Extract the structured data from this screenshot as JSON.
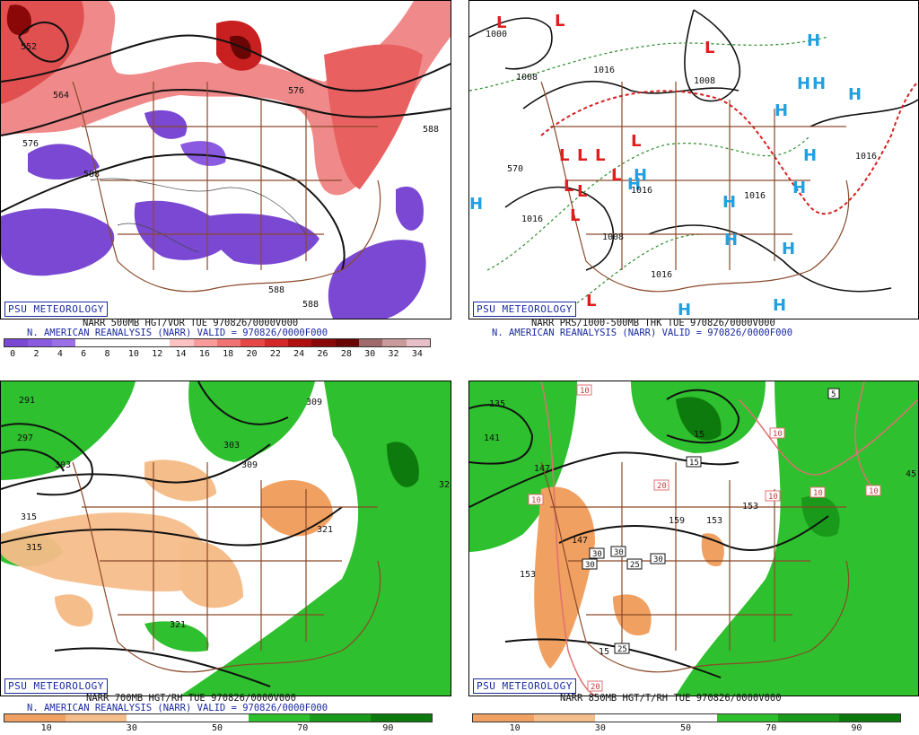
{
  "badge": "PSU METEOROLOGY",
  "panels": {
    "tl": {
      "title": "NARR 500MB HGT/VOR TUE 970826/0000V000",
      "subtitle": "N. AMERICAN REANALYSIS (NARR) VALID = 970826/0000F000",
      "contour_labels": [
        "552",
        "564",
        "576",
        "576",
        "588",
        "588",
        "588",
        "588"
      ],
      "colorbar_ticks": [
        "0",
        "2",
        "4",
        "6",
        "8",
        "10",
        "12",
        "14",
        "16",
        "18",
        "20",
        "22",
        "24",
        "26",
        "28",
        "30",
        "32",
        "34"
      ],
      "colorbar_colors": [
        "#7a48d2",
        "#8a5ae0",
        "#9a70e6",
        "#ffffff",
        "#ffffff",
        "#ffffff",
        "#ffffff",
        "#ffc2c2",
        "#f99b9b",
        "#f07272",
        "#e64848",
        "#d42828",
        "#b01010",
        "#8a0808",
        "#6a0505",
        "#a06a6a",
        "#c89a9a",
        "#e8c0c8"
      ]
    },
    "tr": {
      "title": "NARR PRS/1000-500MB THK TUE 970826/0000V000",
      "subtitle": "N. AMERICAN REANALYSIS (NARR) VALID = 970826/0000F000",
      "contour_labels": [
        "1000",
        "1008",
        "1016",
        "1008",
        "1016",
        "1016",
        "1016",
        "1016",
        "1008",
        "1016",
        "570"
      ],
      "highs": 16,
      "lows": 12
    },
    "bl": {
      "title": "NARR 700MB HGT/RH TUE 970826/0000V000",
      "subtitle": "N. AMERICAN REANALYSIS (NARR) VALID = 970826/0000F000",
      "contour_labels": [
        "291",
        "297",
        "303",
        "309",
        "303",
        "309",
        "315",
        "315",
        "321",
        "321",
        "32"
      ],
      "colorbar_ticks": [
        "10",
        "30",
        "50",
        "70",
        "90"
      ],
      "colorbar_colors": [
        "#f0a060",
        "#f5bd8a",
        "#ffffff",
        "#ffffff",
        "#2ec02e",
        "#1a9a1a",
        "#0c7a0c"
      ]
    },
    "br": {
      "title": "NARR 850MB HGT/T/RH TUE 970826/0000V000",
      "subtitle": "",
      "contour_labels": [
        "135",
        "141",
        "147",
        "147",
        "153",
        "153",
        "153",
        "159",
        "15",
        "15",
        "45"
      ],
      "boxed_labels": [
        "10",
        "10",
        "10",
        "10",
        "10",
        "10",
        "5",
        "15",
        "20",
        "30",
        "30",
        "30",
        "30",
        "25",
        "25",
        "20"
      ],
      "colorbar_ticks": [
        "10",
        "30",
        "50",
        "70",
        "90"
      ],
      "colorbar_colors": [
        "#f0a060",
        "#f5bd8a",
        "#ffffff",
        "#ffffff",
        "#2ec02e",
        "#1a9a1a",
        "#0c7a0c"
      ]
    }
  }
}
